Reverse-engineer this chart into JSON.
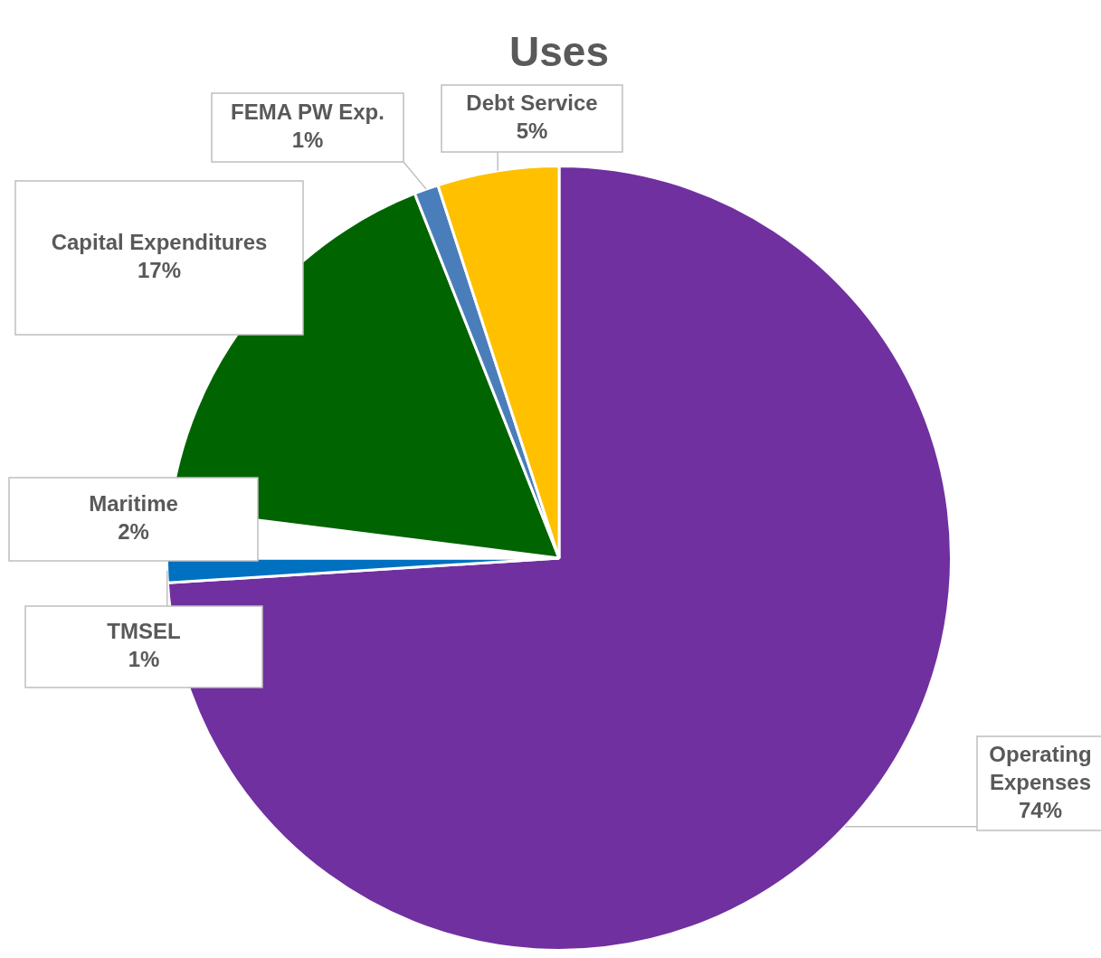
{
  "chart_data": {
    "type": "pie",
    "title": "Uses",
    "categories": [
      "Operating Expenses",
      "TMSEL",
      "Maritime",
      "Capital Expenditures",
      "FEMA PW Exp.",
      "Debt Service"
    ],
    "values": [
      74,
      1,
      2,
      17,
      1,
      5
    ],
    "value_labels": [
      "74%",
      "1%",
      "2%",
      "17%",
      "1%",
      "5%"
    ],
    "colors": [
      "#7030a0",
      "#0070c0",
      "#ffffff",
      "#006400",
      "#4a7ebb",
      "#ffc000"
    ],
    "legend": false
  }
}
